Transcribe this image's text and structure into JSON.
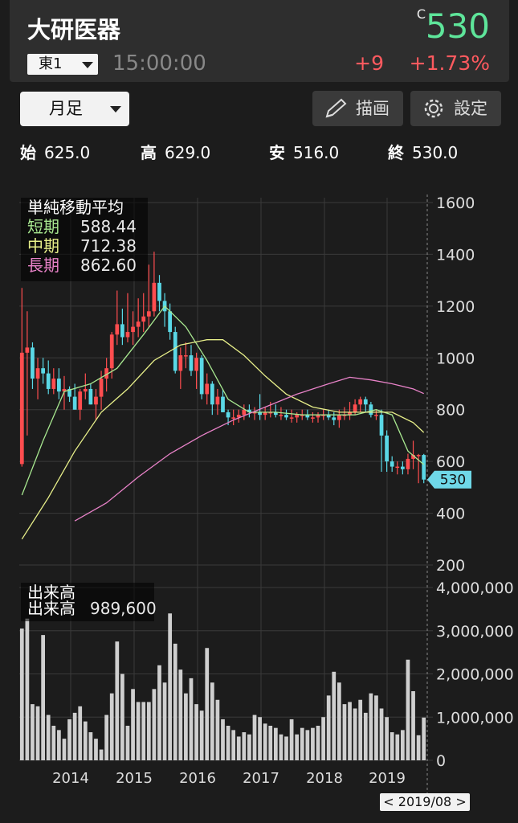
{
  "header": {
    "stock_name": "大研医器",
    "price_flag": "C",
    "price": "530",
    "market": "東1",
    "time": "15:00:00",
    "change": "+9",
    "change_pct": "+1.73%"
  },
  "toolbar": {
    "period": "月足",
    "draw_label": "描画",
    "settings_label": "設定"
  },
  "ohlc": {
    "open_label": "始",
    "open": "625.0",
    "high_label": "高",
    "high": "629.0",
    "low_label": "安",
    "low": "516.0",
    "close_label": "終",
    "close": "530.0"
  },
  "legend": {
    "title": "単純移動平均",
    "short_label": "短期",
    "short_value": "588.44",
    "mid_label": "中期",
    "mid_value": "712.38",
    "long_label": "長期",
    "long_value": "862.60"
  },
  "volume_legend": {
    "title": "出来高",
    "label": "出来高",
    "value": "989,600"
  },
  "colors": {
    "up": "#ff4d4f",
    "down": "#5ad8e6",
    "short_ma": "#a8e890",
    "mid_ma": "#e8f08a",
    "long_ma": "#e882c8",
    "volume": "#cfcfcf"
  },
  "date_badge": "< 2019/08 >",
  "chart_data": [
    {
      "type": "candlestick",
      "title": "単純移動平均",
      "ylim": [
        200,
        1600
      ],
      "y_ticks": [
        "1600",
        "1400",
        "1200",
        "1000",
        "800",
        "600",
        "400",
        "200"
      ],
      "x_tick_labels": [
        "2014",
        "2015",
        "2016",
        "2017",
        "2018",
        "2019"
      ],
      "last_price_label": "530",
      "x": [
        "2013/04",
        "2013/05",
        "2013/06",
        "2013/07",
        "2013/08",
        "2013/09",
        "2013/10",
        "2013/11",
        "2013/12",
        "2014/01",
        "2014/02",
        "2014/03",
        "2014/04",
        "2014/05",
        "2014/06",
        "2014/07",
        "2014/08",
        "2014/09",
        "2014/10",
        "2014/11",
        "2014/12",
        "2015/01",
        "2015/02",
        "2015/03",
        "2015/04",
        "2015/05",
        "2015/06",
        "2015/07",
        "2015/08",
        "2015/09",
        "2015/10",
        "2015/11",
        "2015/12",
        "2016/01",
        "2016/02",
        "2016/03",
        "2016/04",
        "2016/05",
        "2016/06",
        "2016/07",
        "2016/08",
        "2016/09",
        "2016/10",
        "2016/11",
        "2016/12",
        "2017/01",
        "2017/02",
        "2017/03",
        "2017/04",
        "2017/05",
        "2017/06",
        "2017/07",
        "2017/08",
        "2017/09",
        "2017/10",
        "2017/11",
        "2017/12",
        "2018/01",
        "2018/02",
        "2018/03",
        "2018/04",
        "2018/05",
        "2018/06",
        "2018/07",
        "2018/08",
        "2018/09",
        "2018/10",
        "2018/11",
        "2018/12",
        "2019/01",
        "2019/02",
        "2019/03",
        "2019/04",
        "2019/05",
        "2019/06",
        "2019/07",
        "2019/08"
      ],
      "open": [
        590,
        1020,
        1040,
        920,
        960,
        940,
        880,
        920,
        870,
        880,
        850,
        800,
        870,
        880,
        820,
        850,
        920,
        960,
        1090,
        1130,
        1080,
        1100,
        1120,
        1140,
        1160,
        1180,
        1290,
        1220,
        1180,
        1100,
        950,
        1010,
        1010,
        950,
        1000,
        860,
        900,
        820,
        850,
        790,
        770,
        770,
        780,
        800,
        790,
        790,
        780,
        790,
        790,
        780,
        780,
        770,
        770,
        780,
        780,
        770,
        770,
        780,
        780,
        770,
        760,
        780,
        780,
        790,
        820,
        840,
        820,
        780,
        780,
        700,
        600,
        580,
        580,
        570,
        610,
        625,
        625
      ],
      "high": [
        1270,
        1180,
        1060,
        1000,
        1000,
        990,
        960,
        960,
        930,
        890,
        900,
        880,
        940,
        900,
        880,
        950,
        1000,
        1100,
        1260,
        1190,
        1250,
        1180,
        1230,
        1250,
        1360,
        1410,
        1320,
        1250,
        1210,
        1120,
        1040,
        1060,
        1050,
        1020,
        1010,
        940,
        910,
        880,
        880,
        800,
        800,
        800,
        820,
        820,
        810,
        860,
        810,
        830,
        820,
        810,
        800,
        800,
        790,
        800,
        800,
        790,
        790,
        800,
        800,
        790,
        800,
        810,
        830,
        840,
        850,
        850,
        830,
        800,
        800,
        720,
        620,
        600,
        600,
        630,
        680,
        629,
        629
      ],
      "low": [
        580,
        700,
        880,
        840,
        900,
        860,
        860,
        840,
        800,
        830,
        800,
        760,
        840,
        820,
        760,
        800,
        870,
        920,
        1050,
        1050,
        1060,
        1050,
        1080,
        1100,
        1120,
        1160,
        1180,
        1120,
        1070,
        940,
        880,
        960,
        930,
        880,
        840,
        820,
        780,
        780,
        790,
        740,
        740,
        750,
        760,
        770,
        760,
        760,
        760,
        770,
        770,
        760,
        760,
        750,
        750,
        760,
        760,
        750,
        750,
        760,
        760,
        740,
        730,
        760,
        760,
        780,
        790,
        790,
        770,
        760,
        560,
        560,
        560,
        550,
        550,
        550,
        570,
        516,
        516
      ],
      "close": [
        1020,
        1040,
        920,
        960,
        940,
        880,
        920,
        870,
        880,
        850,
        800,
        870,
        880,
        820,
        850,
        920,
        960,
        1090,
        1130,
        1080,
        1100,
        1120,
        1140,
        1160,
        1180,
        1290,
        1220,
        1180,
        1100,
        950,
        1010,
        1010,
        950,
        1000,
        860,
        900,
        820,
        850,
        790,
        770,
        770,
        780,
        800,
        790,
        790,
        780,
        790,
        790,
        780,
        780,
        770,
        770,
        780,
        780,
        770,
        770,
        780,
        780,
        770,
        760,
        780,
        780,
        790,
        820,
        840,
        820,
        780,
        780,
        700,
        600,
        580,
        580,
        570,
        610,
        625,
        625,
        530
      ],
      "moving_averages": [
        {
          "name": "短期",
          "value": "588.44",
          "points": [
            [
              0,
              470
            ],
            [
              4,
              680
            ],
            [
              8,
              870
            ],
            [
              13,
              900
            ],
            [
              18,
              960
            ],
            [
              23,
              1090
            ],
            [
              27,
              1200
            ],
            [
              31,
              1120
            ],
            [
              35,
              990
            ],
            [
              39,
              840
            ],
            [
              43,
              790
            ],
            [
              48,
              790
            ],
            [
              53,
              780
            ],
            [
              58,
              780
            ],
            [
              63,
              780
            ],
            [
              67,
              800
            ],
            [
              70,
              780
            ],
            [
              73,
              640
            ],
            [
              76,
              588
            ]
          ]
        },
        {
          "name": "中期",
          "value": "712.38",
          "points": [
            [
              0,
              300
            ],
            [
              5,
              460
            ],
            [
              10,
              640
            ],
            [
              15,
              790
            ],
            [
              20,
              880
            ],
            [
              25,
              990
            ],
            [
              30,
              1050
            ],
            [
              35,
              1070
            ],
            [
              38,
              1070
            ],
            [
              42,
              1010
            ],
            [
              46,
              930
            ],
            [
              50,
              860
            ],
            [
              55,
              810
            ],
            [
              60,
              790
            ],
            [
              65,
              790
            ],
            [
              70,
              790
            ],
            [
              74,
              750
            ],
            [
              76,
              712
            ]
          ]
        },
        {
          "name": "長期",
          "value": "862.60",
          "points": [
            [
              10,
              370
            ],
            [
              16,
              440
            ],
            [
              22,
              540
            ],
            [
              28,
              630
            ],
            [
              34,
              700
            ],
            [
              40,
              760
            ],
            [
              46,
              810
            ],
            [
              52,
              860
            ],
            [
              58,
              900
            ],
            [
              62,
              925
            ],
            [
              66,
              915
            ],
            [
              70,
              900
            ],
            [
              74,
              880
            ],
            [
              76,
              862
            ]
          ]
        }
      ]
    },
    {
      "type": "bar",
      "title": "出来高",
      "ylim": [
        0,
        4000000
      ],
      "y_ticks": [
        "4,000,000",
        "3,000,000",
        "2,000,000",
        "1,000,000",
        "0"
      ],
      "last_value": "989,600",
      "values": [
        3050000,
        3280000,
        1300000,
        1250000,
        2900000,
        1050000,
        800000,
        700000,
        500000,
        950000,
        1100000,
        1250000,
        900000,
        650000,
        500000,
        250000,
        1050000,
        1550000,
        2750000,
        2000000,
        800000,
        1650000,
        1350000,
        1350000,
        1350000,
        1650000,
        2200000,
        1800000,
        3400000,
        2700000,
        2100000,
        1550000,
        1900000,
        1300000,
        1150000,
        2600000,
        1800000,
        1400000,
        950000,
        800000,
        700000,
        550000,
        650000,
        600000,
        1050000,
        1000000,
        850000,
        800000,
        750000,
        600000,
        550000,
        950000,
        600000,
        750000,
        700000,
        750000,
        800000,
        1000000,
        1500000,
        2050000,
        1800000,
        1300000,
        1350000,
        1200000,
        1400000,
        1100000,
        1550000,
        1500000,
        1200000,
        1000000,
        650000,
        600000,
        700000,
        2330000,
        1600000,
        580000,
        989600
      ]
    }
  ]
}
